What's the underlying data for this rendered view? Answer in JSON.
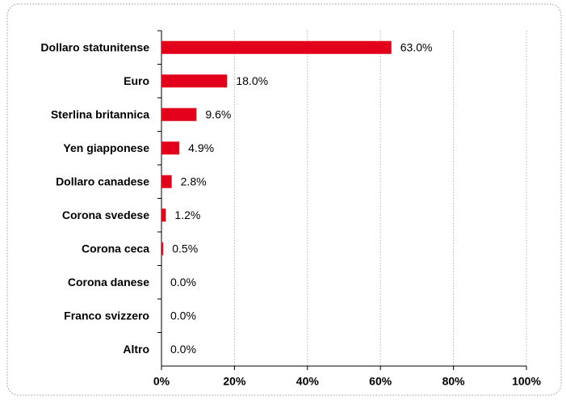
{
  "chart_data": {
    "type": "bar",
    "orientation": "horizontal",
    "categories": [
      "Dollaro statunitense",
      "Euro",
      "Sterlina britannica",
      "Yen giapponese",
      "Dollaro canadese",
      "Corona svedese",
      "Corona ceca",
      "Corona danese",
      "Franco svizzero",
      "Altro"
    ],
    "values": [
      63.0,
      18.0,
      9.6,
      4.9,
      2.8,
      1.2,
      0.5,
      0.0,
      0.0,
      0.0
    ],
    "value_labels": [
      "63.0%",
      "18.0%",
      "9.6%",
      "4.9%",
      "2.8%",
      "1.2%",
      "0.5%",
      "0.0%",
      "0.0%",
      "0.0%"
    ],
    "color": "#e2001a",
    "xlim": [
      0,
      100
    ],
    "xticks": [
      {
        "value": 0,
        "label": "0%"
      },
      {
        "value": 20,
        "label": "20%"
      },
      {
        "value": 40,
        "label": "40%"
      },
      {
        "value": 60,
        "label": "60%"
      },
      {
        "value": 80,
        "label": "80%"
      },
      {
        "value": 100,
        "label": "100%"
      }
    ],
    "grid": true
  }
}
